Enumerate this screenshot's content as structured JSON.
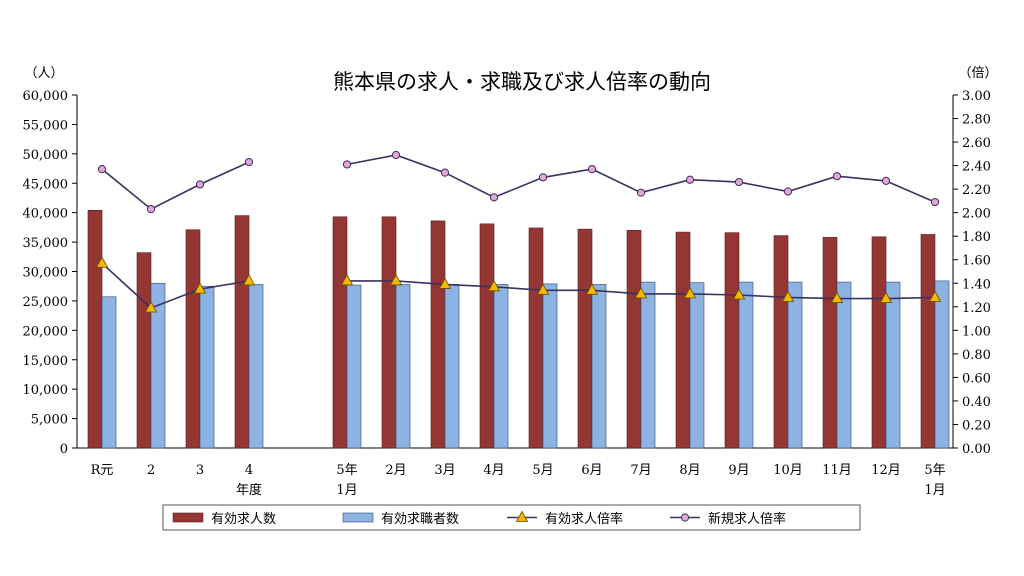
{
  "chart_data": {
    "type": "bar",
    "title": "熊本県の求人・求職及び求人倍率の動向",
    "left_unit": "（人）",
    "right_unit": "（倍）",
    "ylim": [
      0,
      60000
    ],
    "y2lim": [
      0,
      3.0
    ],
    "y_ticks": [
      "60,000",
      "55,000",
      "50,000",
      "45,000",
      "40,000",
      "35,000",
      "30,000",
      "25,000",
      "20,000",
      "15,000",
      "10,000",
      "5,000",
      "0"
    ],
    "y2_ticks": [
      "3.00",
      "2.80",
      "2.60",
      "2.40",
      "2.20",
      "2.00",
      "1.80",
      "1.60",
      "1.40",
      "1.20",
      "1.00",
      "0.80",
      "0.60",
      "0.40",
      "0.20",
      "0.00"
    ],
    "year_group_label": "年度",
    "categories": [
      [
        "R元"
      ],
      [
        "2"
      ],
      [
        "3"
      ],
      [
        "4"
      ],
      [
        "5年",
        "1月"
      ],
      [
        "2月"
      ],
      [
        "3月"
      ],
      [
        "4月"
      ],
      [
        "5月"
      ],
      [
        "6月"
      ],
      [
        "7月"
      ],
      [
        "8月"
      ],
      [
        "9月"
      ],
      [
        "10月"
      ],
      [
        "11月"
      ],
      [
        "12月"
      ],
      [
        "5年",
        "1月"
      ]
    ],
    "gap_after_index": 3,
    "colors": {
      "offers_bar": "#943634",
      "seekers_bar": "#8db3e2",
      "ratio_line": "#3c3060",
      "ratio_marker": "#f5b800",
      "new_ratio_marker": "#e3a6d6"
    },
    "series": [
      {
        "name": "有効求人数",
        "kind": "bar",
        "values": [
          40400,
          33200,
          37100,
          39500,
          39300,
          39300,
          38600,
          38100,
          37400,
          37200,
          37000,
          36700,
          36600,
          36100,
          35800,
          35900,
          36300
        ]
      },
      {
        "name": "有効求職者数",
        "kind": "bar",
        "values": [
          25700,
          28000,
          27500,
          27800,
          27700,
          27800,
          27800,
          27800,
          27900,
          27800,
          28200,
          28100,
          28200,
          28200,
          28200,
          28200,
          28400
        ]
      },
      {
        "name": "有効求人倍率",
        "kind": "line",
        "axis": "right",
        "values": [
          1.57,
          1.19,
          1.35,
          1.42,
          1.42,
          1.42,
          1.39,
          1.37,
          1.34,
          1.34,
          1.31,
          1.31,
          1.3,
          1.28,
          1.27,
          1.27,
          1.28
        ]
      },
      {
        "name": "新規求人倍率",
        "kind": "line",
        "axis": "right",
        "values": [
          2.37,
          2.03,
          2.24,
          2.43,
          2.41,
          2.49,
          2.34,
          2.13,
          2.3,
          2.37,
          2.17,
          2.28,
          2.26,
          2.18,
          2.31,
          2.27,
          2.09
        ]
      }
    ]
  }
}
